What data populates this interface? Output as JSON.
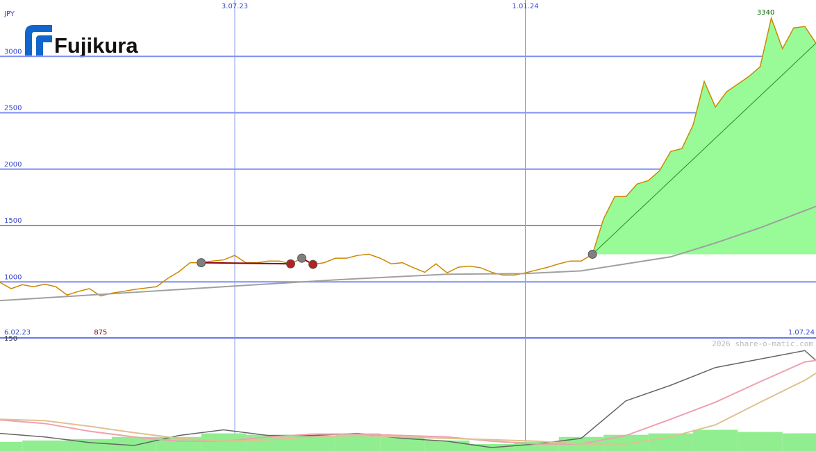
{
  "chart_data": {
    "type": "line",
    "currency": "JPY",
    "logo": "Fujikura",
    "watermark": "2026 share-o-matic.com",
    "xlim": [
      0,
      73
    ],
    "xticks": [
      {
        "value": 21,
        "label": "3.07.23"
      },
      {
        "value": 47,
        "label": "1.01.24"
      }
    ],
    "start_label": "6.02.23",
    "end_label": "1.07.24",
    "ylim": [
      500,
      3500
    ],
    "yticks": [
      1000,
      1500,
      2000,
      2500,
      3000
    ],
    "grid": true,
    "series": [
      {
        "name": "Price",
        "color": "#cc8800",
        "values": [
          995,
          940,
          975,
          957,
          980,
          957,
          883,
          915,
          940,
          875,
          900,
          915,
          932,
          945,
          957,
          1030,
          1090,
          1170,
          1170,
          1185,
          1195,
          1235,
          1170,
          1170,
          1185,
          1185,
          1160,
          1210,
          1155,
          1170,
          1210,
          1210,
          1235,
          1245,
          1210,
          1160,
          1170,
          1125,
          1085,
          1160,
          1080,
          1130,
          1140,
          1125,
          1085,
          1060,
          1060,
          1080,
          1105,
          1130,
          1160,
          1185,
          1185,
          1245,
          1560,
          1757,
          1757,
          1868,
          1898,
          1985,
          2157,
          2182,
          2390,
          2778,
          2551,
          2686,
          2754,
          2822,
          2908,
          3340,
          3068,
          3252,
          3265,
          3117
        ]
      },
      {
        "name": "Average",
        "color": "#a0a0a0",
        "x": [
          0,
          10,
          20,
          30,
          40,
          47,
          52,
          56,
          60,
          64,
          68,
          73
        ],
        "values": [
          834,
          895,
          957,
          1018,
          1068,
          1074,
          1098,
          1160,
          1222,
          1345,
          1480,
          1670
        ]
      }
    ],
    "low": {
      "x": 9,
      "value": 875
    },
    "high": {
      "x": 69,
      "value": 3340
    },
    "signals": [
      {
        "x": 18,
        "value": 1170,
        "kind": "entry"
      },
      {
        "x": 26,
        "value": 1160,
        "kind": "exit"
      },
      {
        "x": 27,
        "value": 1210,
        "kind": "entry"
      },
      {
        "x": 28,
        "value": 1155,
        "kind": "exit"
      },
      {
        "x": 53,
        "value": 1245,
        "kind": "entry"
      }
    ],
    "entry_color": "#808080",
    "exit_color": "#b22222",
    "indicator": {
      "ylim": [
        0,
        150
      ],
      "yticks": [
        0,
        150
      ],
      "x": [
        0,
        4,
        8,
        12,
        16,
        20,
        24,
        28,
        32,
        36,
        40,
        44,
        48,
        52,
        56,
        60,
        64,
        68,
        72,
        73
      ],
      "bars": {
        "color": "#90ee90",
        "values": [
          8,
          10,
          12,
          15,
          15,
          20,
          18,
          17,
          20,
          15,
          10,
          5,
          8,
          15,
          18,
          20,
          25,
          22,
          20,
          20
        ]
      },
      "series": [
        {
          "color": "#666666",
          "values": [
            20,
            15,
            7,
            3,
            17,
            25,
            17,
            17,
            20,
            13,
            9,
            0,
            5,
            13,
            66,
            88,
            113,
            125,
            137,
            123
          ]
        },
        {
          "color": "#f0a0b0",
          "values": [
            39,
            34,
            23,
            15,
            9,
            9,
            15,
            19,
            19,
            17,
            15,
            9,
            5,
            5,
            17,
            40,
            64,
            93,
            121,
            123
          ]
        },
        {
          "color": "#e0c090",
          "values": [
            40,
            38,
            30,
            21,
            13,
            9,
            11,
            15,
            17,
            15,
            13,
            11,
            9,
            5,
            5,
            15,
            32,
            64,
            95,
            105
          ]
        }
      ]
    }
  }
}
